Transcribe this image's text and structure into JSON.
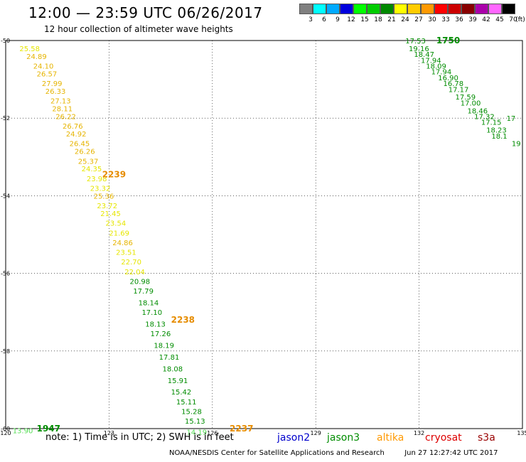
{
  "header": {
    "title": "12:00 — 23:59 UTC 06/26/2017",
    "subtitle": "12 hour collection of altimeter wave heights"
  },
  "colorbar": {
    "unit": "(ft)",
    "stops": [
      {
        "label": "3",
        "color": "#808080"
      },
      {
        "label": "6",
        "color": "#00ffff"
      },
      {
        "label": "9",
        "color": "#00aaff"
      },
      {
        "label": "12",
        "color": "#0000dd"
      },
      {
        "label": "15",
        "color": "#00ff00"
      },
      {
        "label": "18",
        "color": "#00cc00"
      },
      {
        "label": "21",
        "color": "#008800"
      },
      {
        "label": "24",
        "color": "#ffff00"
      },
      {
        "label": "27",
        "color": "#ffcc00"
      },
      {
        "label": "30",
        "color": "#ff9900"
      },
      {
        "label": "33",
        "color": "#ff0000"
      },
      {
        "label": "36",
        "color": "#cc0000"
      },
      {
        "label": "39",
        "color": "#880000"
      },
      {
        "label": "42",
        "color": "#aa00aa"
      },
      {
        "label": "45",
        "color": "#ff66ff"
      },
      {
        "label": "70",
        "color": "#000000"
      }
    ]
  },
  "map": {
    "lon_range": [
      120,
      135
    ],
    "lat_range": [
      -60,
      -50
    ],
    "lon_ticks": [
      "120",
      "123",
      "126",
      "129",
      "132",
      "135"
    ],
    "lat_ticks": [
      "-50",
      "-52",
      "-54",
      "-56",
      "-58",
      "-60"
    ],
    "grid": "dotted"
  },
  "track_colors": {
    "yellow": "#e6e600",
    "gold": "#e6b400",
    "green": "#008c00",
    "orange": "#e68c00",
    "lightgreen": "#55dd55"
  },
  "tracks": [
    {
      "points": [
        {
          "v": "25.58",
          "lon": 120.4,
          "lat": -50.2,
          "c": "yellow"
        },
        {
          "v": "24.89",
          "lon": 120.6,
          "lat": -50.4,
          "c": "gold"
        },
        {
          "v": "24.10",
          "lon": 120.8,
          "lat": -50.65,
          "c": "gold"
        },
        {
          "v": "26.57",
          "lon": 120.9,
          "lat": -50.85,
          "c": "gold"
        },
        {
          "v": "27.99",
          "lon": 121.05,
          "lat": -51.1,
          "c": "gold"
        },
        {
          "v": "26.33",
          "lon": 121.15,
          "lat": -51.3,
          "c": "gold"
        },
        {
          "v": "27.13",
          "lon": 121.3,
          "lat": -51.55,
          "c": "gold"
        },
        {
          "v": "28.11",
          "lon": 121.35,
          "lat": -51.75,
          "c": "gold"
        },
        {
          "v": "26.22",
          "lon": 121.45,
          "lat": -51.95,
          "c": "gold"
        },
        {
          "v": "26.76",
          "lon": 121.65,
          "lat": -52.2,
          "c": "gold"
        },
        {
          "v": "24.92",
          "lon": 121.75,
          "lat": -52.4,
          "c": "gold"
        },
        {
          "v": "26.45",
          "lon": 121.85,
          "lat": -52.65,
          "c": "gold"
        },
        {
          "v": "26.26",
          "lon": 122.0,
          "lat": -52.85,
          "c": "gold"
        },
        {
          "v": "25.37",
          "lon": 122.1,
          "lat": -53.1,
          "c": "gold"
        },
        {
          "v": "24.35",
          "lon": 122.2,
          "lat": -53.3,
          "c": "yellow"
        },
        {
          "v": "23.98",
          "lon": 122.35,
          "lat": -53.55,
          "c": "yellow"
        },
        {
          "v": "23.32",
          "lon": 122.45,
          "lat": -53.8,
          "c": "yellow"
        },
        {
          "v": "25.36",
          "lon": 122.55,
          "lat": -54.0,
          "c": "gold"
        },
        {
          "v": "23.72",
          "lon": 122.65,
          "lat": -54.25,
          "c": "yellow"
        },
        {
          "v": "21.45",
          "lon": 122.75,
          "lat": -54.45,
          "c": "yellow"
        },
        {
          "v": "23.54",
          "lon": 122.9,
          "lat": -54.7,
          "c": "yellow"
        },
        {
          "v": "21.69",
          "lon": 123.0,
          "lat": -54.95,
          "c": "yellow"
        },
        {
          "v": "24.86",
          "lon": 123.1,
          "lat": -55.2,
          "c": "gold"
        },
        {
          "v": "23.51",
          "lon": 123.2,
          "lat": -55.45,
          "c": "yellow"
        },
        {
          "v": "22.70",
          "lon": 123.35,
          "lat": -55.7,
          "c": "yellow"
        },
        {
          "v": "22.04",
          "lon": 123.45,
          "lat": -55.95,
          "c": "yellow"
        },
        {
          "v": "20.98",
          "lon": 123.6,
          "lat": -56.2,
          "c": "green"
        },
        {
          "v": "17.79",
          "lon": 123.7,
          "lat": -56.45,
          "c": "green"
        },
        {
          "v": "18.14",
          "lon": 123.85,
          "lat": -56.75,
          "c": "green"
        },
        {
          "v": "17.10",
          "lon": 123.95,
          "lat": -57.0,
          "c": "green"
        },
        {
          "v": "18.13",
          "lon": 124.05,
          "lat": -57.3,
          "c": "green"
        },
        {
          "v": "17.26",
          "lon": 124.2,
          "lat": -57.55,
          "c": "green"
        },
        {
          "v": "18.19",
          "lon": 124.3,
          "lat": -57.85,
          "c": "green"
        },
        {
          "v": "17.81",
          "lon": 124.45,
          "lat": -58.15,
          "c": "green"
        },
        {
          "v": "18.08",
          "lon": 124.55,
          "lat": -58.45,
          "c": "green"
        },
        {
          "v": "15.91",
          "lon": 124.7,
          "lat": -58.75,
          "c": "green"
        },
        {
          "v": "15.42",
          "lon": 124.8,
          "lat": -59.05,
          "c": "green"
        },
        {
          "v": "15.11",
          "lon": 124.95,
          "lat": -59.3,
          "c": "green"
        },
        {
          "v": "15.28",
          "lon": 125.1,
          "lat": -59.55,
          "c": "green"
        },
        {
          "v": "15.13",
          "lon": 125.2,
          "lat": -59.8,
          "c": "green"
        },
        {
          "v": "14.19",
          "lon": 125.25,
          "lat": -60.08,
          "c": "lightgreen"
        }
      ]
    },
    {
      "points": [
        {
          "v": "17.53",
          "lon": 131.6,
          "lat": -50.0,
          "c": "green"
        },
        {
          "v": "19.16",
          "lon": 131.7,
          "lat": -50.2,
          "c": "green"
        },
        {
          "v": "18.47",
          "lon": 131.85,
          "lat": -50.35,
          "c": "green"
        },
        {
          "v": "17.94",
          "lon": 132.05,
          "lat": -50.5,
          "c": "green"
        },
        {
          "v": "18.09",
          "lon": 132.2,
          "lat": -50.65,
          "c": "green"
        },
        {
          "v": "17.94",
          "lon": 132.35,
          "lat": -50.8,
          "c": "green"
        },
        {
          "v": "16.90",
          "lon": 132.55,
          "lat": -50.95,
          "c": "green"
        },
        {
          "v": "16.78",
          "lon": 132.7,
          "lat": -51.1,
          "c": "green"
        },
        {
          "v": "17.17",
          "lon": 132.85,
          "lat": -51.25,
          "c": "green"
        },
        {
          "v": "17.59",
          "lon": 133.05,
          "lat": -51.45,
          "c": "green"
        },
        {
          "v": "17.00",
          "lon": 133.2,
          "lat": -51.6,
          "c": "green"
        },
        {
          "v": "18.46",
          "lon": 133.4,
          "lat": -51.8,
          "c": "green"
        },
        {
          "v": "17.32",
          "lon": 133.6,
          "lat": -51.95,
          "c": "green"
        },
        {
          "v": "17.15",
          "lon": 133.8,
          "lat": -52.1,
          "c": "green"
        },
        {
          "v": "18.23",
          "lon": 133.95,
          "lat": -52.3,
          "c": "green"
        },
        {
          "v": "18.1",
          "lon": 134.1,
          "lat": -52.45,
          "c": "green"
        },
        {
          "v": "19",
          "lon": 134.95,
          "lat": -52.65,
          "c": "green"
        },
        {
          "v": "17",
          "lon": 134.8,
          "lat": -52.0,
          "c": "green"
        }
      ]
    }
  ],
  "track_labels": [
    {
      "v": "2239",
      "lon": 122.8,
      "lat": -53.45,
      "c": "orange"
    },
    {
      "v": "2238",
      "lon": 124.8,
      "lat": -57.2,
      "c": "orange"
    },
    {
      "v": "2237",
      "lon": 126.5,
      "lat": -60.0,
      "c": "orange"
    },
    {
      "v": "1947",
      "lon": 120.9,
      "lat": -60.0,
      "c": "green"
    },
    {
      "v": "1750",
      "lon": 132.5,
      "lat": -50.0,
      "c": "green"
    },
    {
      "v": "13.90",
      "lon": 120.2,
      "lat": -60.05,
      "c": "lightgreen"
    }
  ],
  "legend": {
    "note": "note: 1) Time is in UTC; 2) SWH is in feet",
    "satellites": [
      {
        "name": "jason2",
        "color": "#0000cc"
      },
      {
        "name": "jason3",
        "color": "#008c00"
      },
      {
        "name": "altika",
        "color": "#ff9900"
      },
      {
        "name": "cryosat",
        "color": "#dd0000"
      },
      {
        "name": "s3a",
        "color": "#990000"
      }
    ]
  },
  "credit": {
    "org": "NOAA/NESDIS Center for Satellite Applications and Research",
    "timestamp": "Jun 27 12:27:42 UTC 2017"
  }
}
